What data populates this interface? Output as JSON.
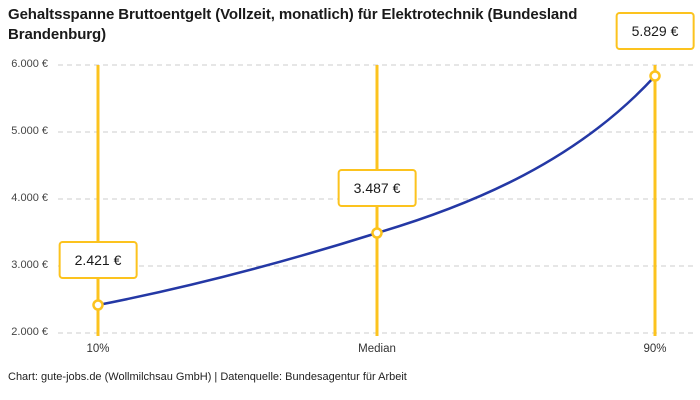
{
  "title": "Gehaltsspanne Bruttoentgelt (Vollzeit, monatlich) für Elektrotechnik (Bundesland Brandenburg)",
  "footer": "Chart: gute-jobs.de (Wollmilchsau GmbH) | Datenquelle: Bundesagentur für Arbeit",
  "colors": {
    "accent_yellow": "#FCC31E",
    "line_blue": "#2438A5",
    "gridline": "#CCCCCC",
    "title_text": "#1A1A1A",
    "axis_text": "#444444",
    "footer_text": "#222222",
    "point_fill": "#FFFFFF"
  },
  "chart_data": {
    "type": "line",
    "title": "Gehaltsspanne Bruttoentgelt (Vollzeit, monatlich) für Elektrotechnik (Bundesland Brandenburg)",
    "x_categories": [
      "10%",
      "Median",
      "90%"
    ],
    "series": [
      {
        "name": "Bruttoentgelt (Vollzeit, monatlich)",
        "values": [
          2421,
          3487,
          5829
        ]
      }
    ],
    "value_labels": [
      "2.421 €",
      "3.487 €",
      "5.829 €"
    ],
    "y_ticks": [
      {
        "value": 2000,
        "label": "2.000 €"
      },
      {
        "value": 3000,
        "label": "3.000 €"
      },
      {
        "value": 4000,
        "label": "4.000 €"
      },
      {
        "value": 5000,
        "label": "5.000 €"
      },
      {
        "value": 6000,
        "label": "6.000 €"
      }
    ],
    "ylim": [
      2000,
      6000
    ],
    "xlabel": "",
    "ylabel": "",
    "grid": "horizontal-dashed",
    "legend": "none",
    "source": "Chart: gute-jobs.de (Wollmilchsau GmbH) | Datenquelle: Bundesagentur für Arbeit"
  }
}
